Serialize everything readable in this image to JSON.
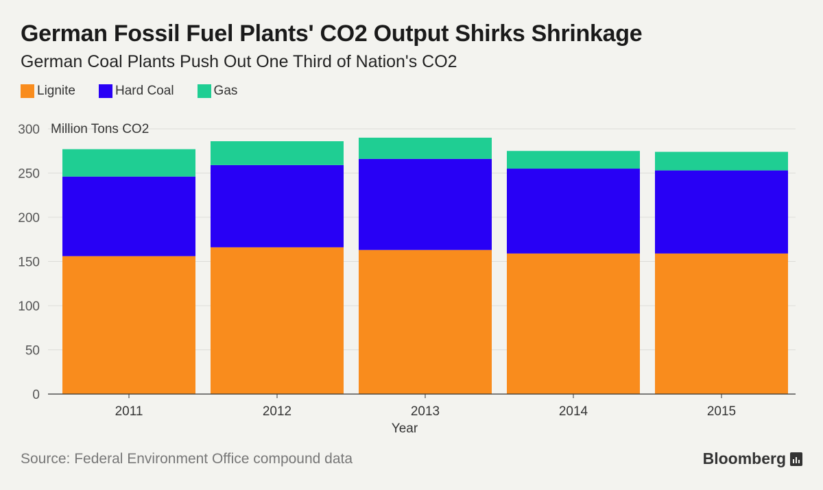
{
  "title": "German Fossil Fuel Plants' CO2 Output Shirks Shrinkage",
  "subtitle": "German Coal Plants Push Out One Third of Nation's CO2",
  "source": "Source: Federal Environment Office compound data",
  "brand": "Bloomberg",
  "colors": {
    "lignite": "#f98c1d",
    "hard_coal": "#2800f5",
    "gas": "#1fce93",
    "grid": "#dcdcd8",
    "axis": "#333333",
    "tick_text": "#555555"
  },
  "chart_data": {
    "type": "bar",
    "stacked": true,
    "categories": [
      "2011",
      "2012",
      "2013",
      "2014",
      "2015"
    ],
    "series": [
      {
        "name": "Lignite",
        "values": [
          156,
          166,
          163,
          159,
          159
        ]
      },
      {
        "name": "Hard Coal",
        "values": [
          90,
          93,
          103,
          96,
          94
        ]
      },
      {
        "name": "Gas",
        "values": [
          31,
          27,
          24,
          20,
          21
        ]
      }
    ],
    "xlabel": "Year",
    "ylabel": "Million Tons CO2",
    "ylim": [
      0,
      300
    ],
    "yticks": [
      0,
      50,
      100,
      150,
      200,
      250,
      300
    ],
    "grid": true,
    "legend": "top-left"
  }
}
